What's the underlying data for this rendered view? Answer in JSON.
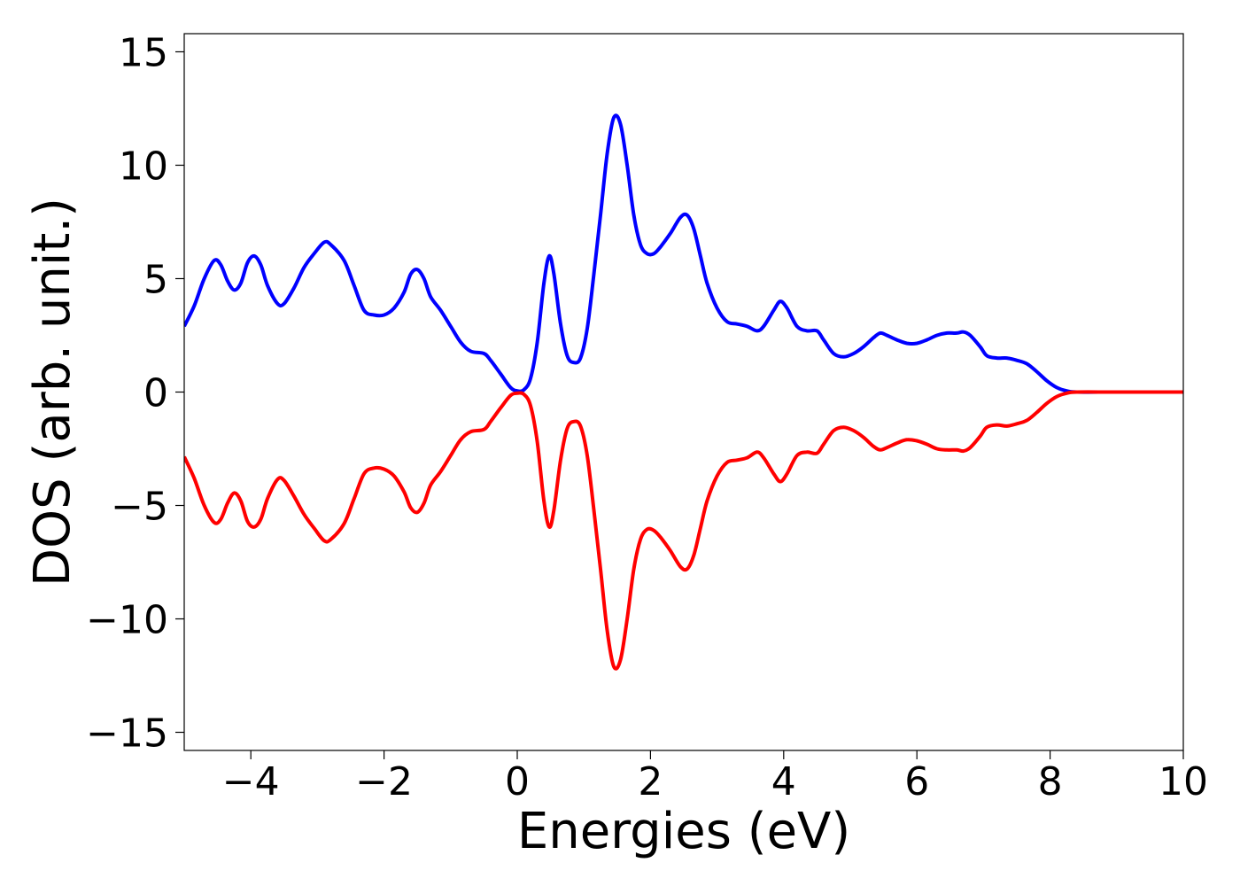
{
  "chart_data": {
    "type": "line",
    "title": "",
    "xlabel": "Energies (eV)",
    "ylabel": "DOS (arb. unit.)",
    "xlim": [
      -5,
      10
    ],
    "ylim": [
      -15.8,
      15.8
    ],
    "xticks": [
      -4,
      -2,
      0,
      2,
      4,
      6,
      8,
      10
    ],
    "xtick_labels": [
      "−4",
      "−2",
      "0",
      "2",
      "4",
      "6",
      "8",
      "10"
    ],
    "yticks": [
      15,
      10,
      5,
      0,
      -5,
      -10,
      -15
    ],
    "ytick_labels": [
      "15",
      "10",
      "5",
      "0",
      "−5",
      "−10",
      "−15"
    ],
    "grid": false,
    "legend": "none",
    "series": [
      {
        "color": "#0000ff",
        "points": [
          [
            -5.0,
            2.9
          ],
          [
            -4.85,
            3.8
          ],
          [
            -4.7,
            5.0
          ],
          [
            -4.55,
            5.8
          ],
          [
            -4.45,
            5.6
          ],
          [
            -4.35,
            4.9
          ],
          [
            -4.25,
            4.5
          ],
          [
            -4.15,
            4.8
          ],
          [
            -4.05,
            5.7
          ],
          [
            -3.95,
            6.0
          ],
          [
            -3.85,
            5.6
          ],
          [
            -3.75,
            4.7
          ],
          [
            -3.6,
            3.9
          ],
          [
            -3.5,
            3.9
          ],
          [
            -3.35,
            4.6
          ],
          [
            -3.2,
            5.5
          ],
          [
            -3.05,
            6.1
          ],
          [
            -2.9,
            6.6
          ],
          [
            -2.8,
            6.5
          ],
          [
            -2.6,
            5.8
          ],
          [
            -2.45,
            4.7
          ],
          [
            -2.3,
            3.6
          ],
          [
            -2.15,
            3.4
          ],
          [
            -2.0,
            3.4
          ],
          [
            -1.85,
            3.7
          ],
          [
            -1.7,
            4.4
          ],
          [
            -1.6,
            5.2
          ],
          [
            -1.5,
            5.4
          ],
          [
            -1.4,
            5.0
          ],
          [
            -1.3,
            4.2
          ],
          [
            -1.15,
            3.6
          ],
          [
            -1.0,
            2.9
          ],
          [
            -0.85,
            2.2
          ],
          [
            -0.7,
            1.8
          ],
          [
            -0.5,
            1.7
          ],
          [
            -0.4,
            1.4
          ],
          [
            -0.25,
            0.8
          ],
          [
            -0.1,
            0.2
          ],
          [
            0.0,
            0.05
          ],
          [
            0.1,
            0.1
          ],
          [
            0.2,
            0.6
          ],
          [
            0.3,
            2.2
          ],
          [
            0.4,
            4.8
          ],
          [
            0.48,
            6.0
          ],
          [
            0.55,
            5.2
          ],
          [
            0.65,
            3.0
          ],
          [
            0.75,
            1.6
          ],
          [
            0.85,
            1.3
          ],
          [
            0.95,
            1.5
          ],
          [
            1.05,
            2.8
          ],
          [
            1.15,
            5.2
          ],
          [
            1.25,
            7.8
          ],
          [
            1.35,
            10.5
          ],
          [
            1.45,
            12.1
          ],
          [
            1.55,
            11.8
          ],
          [
            1.65,
            10.0
          ],
          [
            1.75,
            7.8
          ],
          [
            1.85,
            6.5
          ],
          [
            1.95,
            6.1
          ],
          [
            2.05,
            6.1
          ],
          [
            2.15,
            6.4
          ],
          [
            2.3,
            7.0
          ],
          [
            2.45,
            7.7
          ],
          [
            2.55,
            7.8
          ],
          [
            2.65,
            7.2
          ],
          [
            2.75,
            6.0
          ],
          [
            2.85,
            4.8
          ],
          [
            3.0,
            3.7
          ],
          [
            3.15,
            3.1
          ],
          [
            3.3,
            3.0
          ],
          [
            3.45,
            2.9
          ],
          [
            3.6,
            2.7
          ],
          [
            3.7,
            2.9
          ],
          [
            3.85,
            3.6
          ],
          [
            3.95,
            4.0
          ],
          [
            4.05,
            3.7
          ],
          [
            4.2,
            2.9
          ],
          [
            4.35,
            2.7
          ],
          [
            4.5,
            2.7
          ],
          [
            4.6,
            2.3
          ],
          [
            4.75,
            1.7
          ],
          [
            4.9,
            1.55
          ],
          [
            5.05,
            1.7
          ],
          [
            5.2,
            2.0
          ],
          [
            5.35,
            2.4
          ],
          [
            5.45,
            2.6
          ],
          [
            5.55,
            2.5
          ],
          [
            5.7,
            2.3
          ],
          [
            5.85,
            2.15
          ],
          [
            6.0,
            2.15
          ],
          [
            6.15,
            2.3
          ],
          [
            6.3,
            2.5
          ],
          [
            6.45,
            2.6
          ],
          [
            6.6,
            2.6
          ],
          [
            6.7,
            2.65
          ],
          [
            6.8,
            2.5
          ],
          [
            6.95,
            2.0
          ],
          [
            7.05,
            1.6
          ],
          [
            7.2,
            1.5
          ],
          [
            7.35,
            1.5
          ],
          [
            7.5,
            1.4
          ],
          [
            7.65,
            1.25
          ],
          [
            7.8,
            0.9
          ],
          [
            7.95,
            0.5
          ],
          [
            8.1,
            0.2
          ],
          [
            8.25,
            0.05
          ],
          [
            8.4,
            0.0
          ],
          [
            9.0,
            0.0
          ],
          [
            10.0,
            0.0
          ]
        ]
      },
      {
        "color": "#ff0000",
        "points": [
          [
            -5.0,
            -2.85
          ],
          [
            -4.85,
            -3.8
          ],
          [
            -4.7,
            -5.0
          ],
          [
            -4.55,
            -5.75
          ],
          [
            -4.45,
            -5.6
          ],
          [
            -4.35,
            -4.9
          ],
          [
            -4.25,
            -4.45
          ],
          [
            -4.15,
            -4.8
          ],
          [
            -4.05,
            -5.7
          ],
          [
            -3.95,
            -5.95
          ],
          [
            -3.85,
            -5.6
          ],
          [
            -3.75,
            -4.7
          ],
          [
            -3.6,
            -3.85
          ],
          [
            -3.5,
            -3.9
          ],
          [
            -3.35,
            -4.6
          ],
          [
            -3.2,
            -5.4
          ],
          [
            -3.05,
            -6.0
          ],
          [
            -2.9,
            -6.55
          ],
          [
            -2.8,
            -6.5
          ],
          [
            -2.6,
            -5.8
          ],
          [
            -2.45,
            -4.7
          ],
          [
            -2.3,
            -3.6
          ],
          [
            -2.15,
            -3.35
          ],
          [
            -2.0,
            -3.4
          ],
          [
            -1.85,
            -3.7
          ],
          [
            -1.7,
            -4.4
          ],
          [
            -1.6,
            -5.1
          ],
          [
            -1.5,
            -5.3
          ],
          [
            -1.4,
            -4.9
          ],
          [
            -1.3,
            -4.1
          ],
          [
            -1.15,
            -3.5
          ],
          [
            -1.0,
            -2.8
          ],
          [
            -0.85,
            -2.1
          ],
          [
            -0.7,
            -1.75
          ],
          [
            -0.5,
            -1.65
          ],
          [
            -0.4,
            -1.3
          ],
          [
            -0.25,
            -0.7
          ],
          [
            -0.1,
            -0.15
          ],
          [
            0.0,
            -0.05
          ],
          [
            0.1,
            -0.1
          ],
          [
            0.2,
            -0.6
          ],
          [
            0.3,
            -2.2
          ],
          [
            0.4,
            -4.8
          ],
          [
            0.48,
            -5.95
          ],
          [
            0.55,
            -5.2
          ],
          [
            0.65,
            -3.0
          ],
          [
            0.75,
            -1.6
          ],
          [
            0.85,
            -1.3
          ],
          [
            0.95,
            -1.5
          ],
          [
            1.05,
            -2.8
          ],
          [
            1.15,
            -5.2
          ],
          [
            1.25,
            -7.8
          ],
          [
            1.35,
            -10.5
          ],
          [
            1.45,
            -12.1
          ],
          [
            1.55,
            -11.8
          ],
          [
            1.65,
            -10.0
          ],
          [
            1.75,
            -7.8
          ],
          [
            1.85,
            -6.5
          ],
          [
            1.95,
            -6.05
          ],
          [
            2.05,
            -6.1
          ],
          [
            2.15,
            -6.4
          ],
          [
            2.3,
            -7.0
          ],
          [
            2.45,
            -7.7
          ],
          [
            2.55,
            -7.8
          ],
          [
            2.65,
            -7.2
          ],
          [
            2.75,
            -6.0
          ],
          [
            2.85,
            -4.8
          ],
          [
            3.0,
            -3.7
          ],
          [
            3.15,
            -3.1
          ],
          [
            3.3,
            -3.0
          ],
          [
            3.45,
            -2.9
          ],
          [
            3.6,
            -2.65
          ],
          [
            3.7,
            -2.9
          ],
          [
            3.85,
            -3.6
          ],
          [
            3.95,
            -3.95
          ],
          [
            4.05,
            -3.6
          ],
          [
            4.2,
            -2.8
          ],
          [
            4.35,
            -2.65
          ],
          [
            4.5,
            -2.7
          ],
          [
            4.6,
            -2.3
          ],
          [
            4.75,
            -1.7
          ],
          [
            4.9,
            -1.55
          ],
          [
            5.05,
            -1.7
          ],
          [
            5.2,
            -2.0
          ],
          [
            5.35,
            -2.4
          ],
          [
            5.45,
            -2.55
          ],
          [
            5.55,
            -2.45
          ],
          [
            5.7,
            -2.25
          ],
          [
            5.85,
            -2.1
          ],
          [
            6.0,
            -2.15
          ],
          [
            6.15,
            -2.3
          ],
          [
            6.3,
            -2.5
          ],
          [
            6.45,
            -2.55
          ],
          [
            6.6,
            -2.55
          ],
          [
            6.7,
            -2.6
          ],
          [
            6.8,
            -2.45
          ],
          [
            6.95,
            -1.95
          ],
          [
            7.05,
            -1.55
          ],
          [
            7.2,
            -1.45
          ],
          [
            7.35,
            -1.5
          ],
          [
            7.5,
            -1.4
          ],
          [
            7.65,
            -1.25
          ],
          [
            7.8,
            -0.9
          ],
          [
            7.95,
            -0.5
          ],
          [
            8.1,
            -0.2
          ],
          [
            8.25,
            -0.05
          ],
          [
            8.4,
            0.0
          ],
          [
            9.0,
            0.0
          ],
          [
            10.0,
            0.0
          ]
        ]
      }
    ]
  }
}
